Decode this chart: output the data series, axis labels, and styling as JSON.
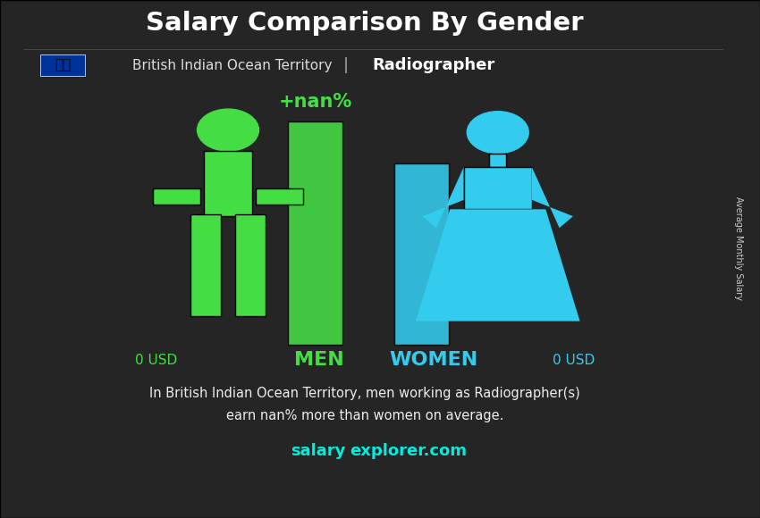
{
  "title": "Salary Comparison By Gender",
  "subtitle_country": "British Indian Ocean Territory",
  "subtitle_job": "Radiographer",
  "man_salary": "0 USD",
  "woman_salary": "0 USD",
  "man_label": "MEN",
  "woman_label": "WOMEN",
  "percent_label": "+nan%",
  "description_line1": "In British Indian Ocean Territory, men working as Radiographer(s)",
  "description_line2": "earn nan% more than women on average.",
  "footer_salary": "salary",
  "footer_explorer": "explorer.com",
  "right_label": "Average Monthly Salary",
  "man_color": "#44dd44",
  "woman_color": "#33ccee",
  "bar_man_color": "#44dd44",
  "bar_woman_color": "#33ccee",
  "bg_overlay_color": "#1a1a2e",
  "title_color": "#ffffff",
  "subtitle_country_color": "#dddddd",
  "subtitle_job_color": "#ffffff",
  "man_salary_color": "#44dd44",
  "woman_salary_color": "#33ccee",
  "man_label_color": "#44dd44",
  "woman_label_color": "#33ccee",
  "percent_color": "#44dd44",
  "description_color": "#eeeeee",
  "footer_color": "#00eedd",
  "right_label_color": "#cccccc"
}
